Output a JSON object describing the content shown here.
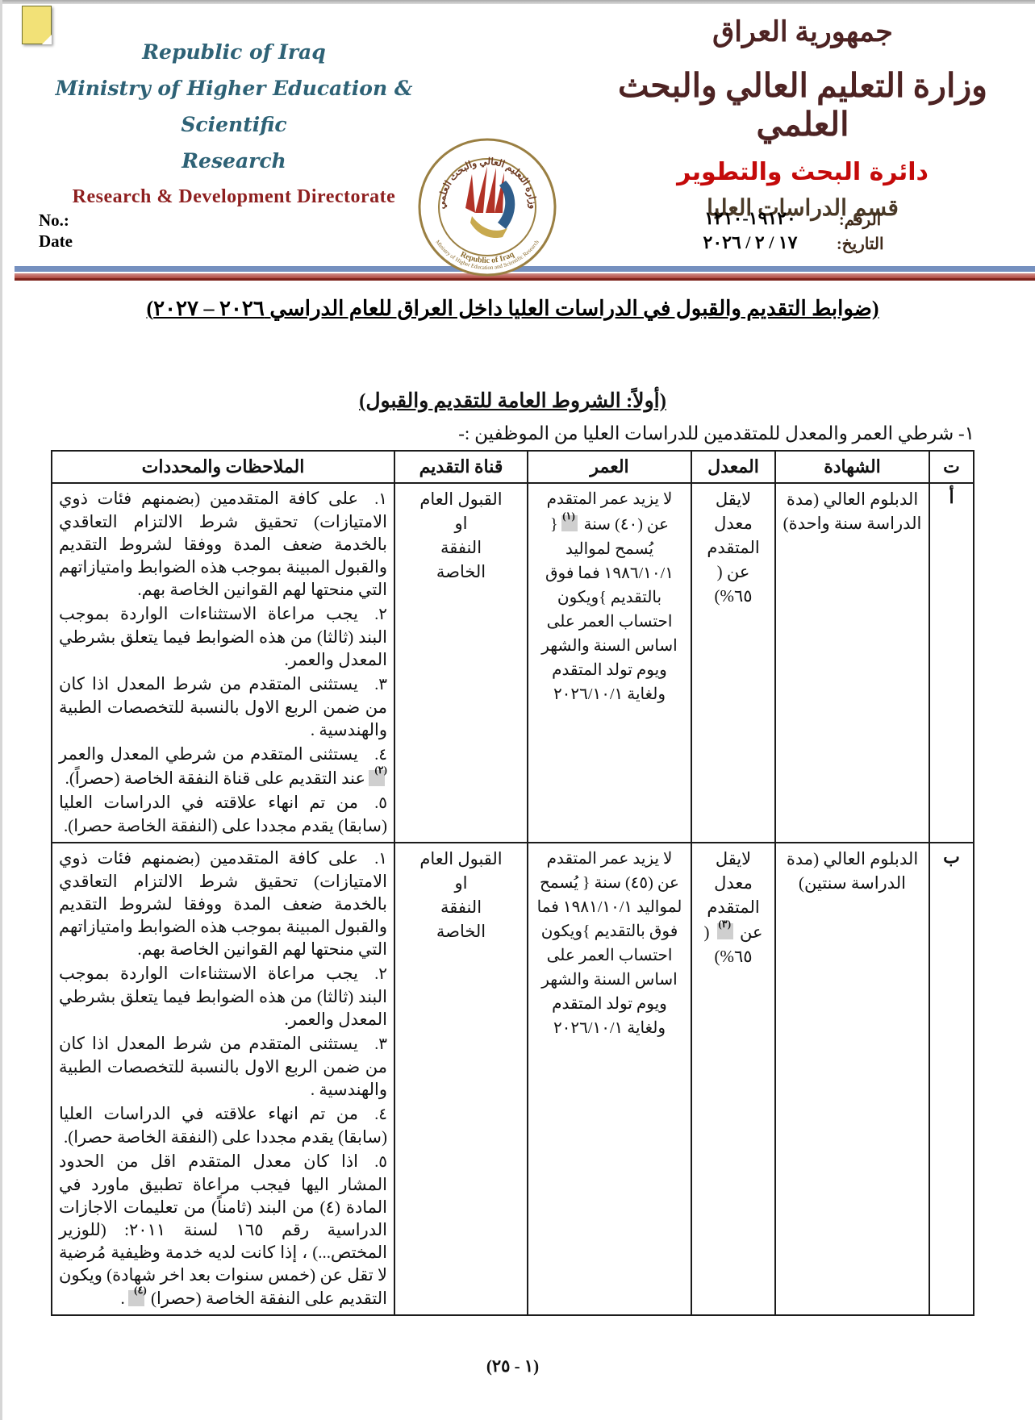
{
  "page": {
    "footer_page_number": "(١ - ٢٥)"
  },
  "header": {
    "english": {
      "country": "Republic of Iraq",
      "ministry_line1": "Ministry of Higher Education & Scientific",
      "ministry_line2": "Research",
      "directorate": "Research & Development Directorate",
      "no_label": "No.:",
      "date_label": "Date"
    },
    "arabic": {
      "country": "جمهورية العراق",
      "ministry": "وزارة التعليم العالي والبحث العلمي",
      "directorate": "دائرة البحث والتطوير",
      "department": "قسم الدراسات العليا",
      "number_label": "الرقم:",
      "number_value": "١٩١٢٠-١٢١٠",
      "date_label": "التاريخ:",
      "date_value": "١٧ / ٢ / ٢٠٢٦"
    },
    "logo": {
      "arabic_text": "وزارة التعليم العالي والبحث العلمي",
      "english_line1": "Republic of Iraq",
      "english_line2": "Ministry of Higher Education and Scientific Research"
    }
  },
  "title": "(ضوابط التقديم والقبول في الدراسات العليا داخل العراق للعام الدراسي ٢٠٢٦ – ٢٠٢٧)",
  "subtitle": "(أولاً: الشروط العامة للتقديم والقبول)",
  "intro_line": "١- شرطي العمر والمعدل للمتقدمين للدراسات العليا من الموظفين :-",
  "table": {
    "headers": [
      "ت",
      "الشهادة",
      "المعدل",
      "العمر",
      "قناة التقديم",
      "الملاحظات والمحددات"
    ],
    "rows": [
      {
        "seq": "أ",
        "certificate": "الدبلوم العالي (مدة الدراسة سنة واحدة)",
        "average": [
          {
            "t": "لايقل معدل المتقدم عن ( ٦٥%)"
          }
        ],
        "age": [
          {
            "t": "لا يزيد عمر المتقدم عن (٤٠) سنة "
          },
          {
            "m": "(١)"
          },
          {
            "t": "{ يُسمح لمواليد ١٩٨٦/١٠/١ فما فوق بالتقديم }ويكون احتساب العمر على اساس السنة والشهر ويوم تولد المتقدم ولغاية ٢٠٢٦/١٠/١"
          }
        ],
        "channel_lines": [
          "القبول العام",
          "او",
          "النفقة",
          "الخاصة"
        ],
        "notes": [
          {
            "num": "١.",
            "segs": [
              {
                "t": "على كافة المتقدمين (بضمنهم فئات ذوي الامتيازات) تحقيق شرط الالتزام التعاقدي بالخدمة ضعف المدة ووفقا لشروط التقديم والقبول المبينة بموجب هذه الضوابط وامتيازاتهم التي منحتها لهم القوانين الخاصة بهم."
              }
            ]
          },
          {
            "num": "٢.",
            "segs": [
              {
                "t": "يجب مراعاة الاستثناءات الواردة بموجب البند (ثالثا) من هذه الضوابط فيما يتعلق بشرطي المعدل والعمر."
              }
            ]
          },
          {
            "num": "٣.",
            "segs": [
              {
                "t": "يستثنى المتقدم من شرط المعدل اذا كان من ضمن الربع الاول بالنسبة للتخصصات الطبية والهندسية ."
              }
            ]
          },
          {
            "num": "٤.",
            "segs": [
              {
                "t": "يستثنى المتقدم من شرطي المعدل والعمر"
              },
              {
                "m": "(٢)"
              },
              {
                "t": "عند التقديم على قناة النفقة الخاصة (حصراً)."
              }
            ]
          },
          {
            "num": "٥.",
            "segs": [
              {
                "t": "من تم انهاء علاقته في الدراسات العليا (سابقا) يقدم مجددا على (النفقة الخاصة حصرا)."
              }
            ]
          }
        ]
      },
      {
        "seq": "ب",
        "certificate": "الدبلوم العالي (مدة الدراسة سنتين)",
        "average": [
          {
            "t": "لايقل معدل المتقدم عن "
          },
          {
            "m": "(٣)"
          },
          {
            "t": " ( ٦٥%)"
          }
        ],
        "age": [
          {
            "t": "لا يزيد عمر المتقدم عن (٤٥) سنة { يُسمح لمواليد ١٩٨١/١٠/١ فما فوق بالتقديم }ويكون احتساب العمر على اساس السنة والشهر ويوم تولد المتقدم ولغاية ٢٠٢٦/١٠/١"
          }
        ],
        "channel_lines": [
          "القبول العام",
          "او",
          "النفقة",
          "الخاصة"
        ],
        "notes": [
          {
            "num": "١.",
            "segs": [
              {
                "t": "على كافة المتقدمين (بضمنهم فئات ذوي الامتيازات) تحقيق شرط الالتزام التعاقدي بالخدمة ضعف المدة ووفقا لشروط التقديم والقبول المبينة بموجب هذه الضوابط وامتيازاتهم التي منحتها لهم القوانين الخاصة بهم."
              }
            ]
          },
          {
            "num": "٢.",
            "segs": [
              {
                "t": "يجب مراعاة الاستثناءات الواردة بموجب البند (ثالثا) من هذه الضوابط فيما يتعلق بشرطي المعدل والعمر."
              }
            ]
          },
          {
            "num": "٣.",
            "segs": [
              {
                "t": "يستثنى المتقدم من شرط المعدل اذا كان من ضمن الربع الاول بالنسبة للتخصصات الطبية والهندسية ."
              }
            ]
          },
          {
            "num": "٤.",
            "segs": [
              {
                "t": "من تم انهاء علاقته  في الدراسات العليا (سابقا) يقدم مجددا على (النفقة الخاصة حصرا)."
              }
            ]
          },
          {
            "num": "٥.",
            "segs": [
              {
                "t": "اذا كان معدل المتقدم اقل من الحدود المشار اليها فيجب مراعاة تطبيق ماورد في المادة (٤) من البند (ثامناً) من تعليمات الاجازات الدراسية رقم ١٦٥ لسنة ٢٠١١: (للوزير المختص...) ، إذا كانت لديه خدمة وظيفية مُرضية لا تقل عن (خمس سنوات بعد اخر شهادة) ويكون التقديم على النفقة الخاصة (حصرا) "
              },
              {
                "m": "(٤)"
              },
              {
                "t": "."
              }
            ]
          }
        ]
      }
    ]
  },
  "colors": {
    "divider_blue": "#7590bf",
    "divider_red": "#b04a41",
    "english_heading_teal": "#2e6276",
    "english_directorate_red": "#8e1f1f",
    "arabic_heading_maroon": "#4d2323",
    "arabic_directorate_red": "#c40a0a",
    "footnote_highlight_gray": "#cfcfcf",
    "seal_gold": "#9a7f42"
  }
}
